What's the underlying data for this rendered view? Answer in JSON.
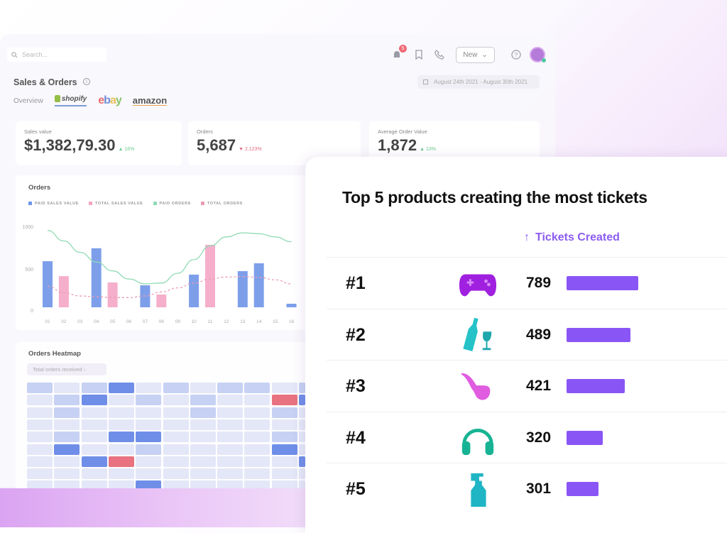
{
  "header": {
    "search_placeholder": "Search...",
    "notification_count": "5",
    "new_label": "New"
  },
  "page": {
    "title": "Sales & Orders",
    "date_range": "August 24th 2021 - August 30th 2021",
    "tabs": [
      {
        "label": "Overview"
      },
      {
        "label": "shopify"
      },
      {
        "label": "ebay"
      },
      {
        "label": "amazon"
      }
    ]
  },
  "stats": [
    {
      "label": "Sales value",
      "value": "$1,382,79.30",
      "change": "16%",
      "dir": "up"
    },
    {
      "label": "Orders",
      "value": "5,687",
      "change": "2.123%",
      "dir": "down"
    },
    {
      "label": "Average Order Value",
      "value": "1,872",
      "change": "13%",
      "dir": "up"
    }
  ],
  "chart_data": {
    "type": "bar",
    "title": "Orders",
    "categories": [
      "01",
      "02",
      "03",
      "04",
      "05",
      "06",
      "07",
      "08",
      "09",
      "10",
      "11",
      "12",
      "13",
      "14",
      "15",
      "16"
    ],
    "yticks": [
      "0",
      "500",
      "1000"
    ],
    "ylim": [
      0,
      1000
    ],
    "series": [
      {
        "name": "PAID SALES VALUE",
        "kind": "bar",
        "color": "#6f95e8",
        "values": [
          570,
          null,
          null,
          730,
          null,
          null,
          272,
          null,
          null,
          404,
          null,
          null,
          447,
          544,
          null,
          44
        ]
      },
      {
        "name": "TOTAL SALES VALUE",
        "kind": "bar",
        "color": "#f4a6c4",
        "values": [
          null,
          385,
          null,
          null,
          307,
          null,
          null,
          158,
          null,
          null,
          772,
          null,
          null,
          null,
          null,
          null
        ]
      },
      {
        "name": "PAID ORDERS",
        "kind": "line",
        "color": "#8fdbb5",
        "values": [
          950,
          820,
          680,
          560,
          450,
          350,
          290,
          300,
          420,
          590,
          760,
          870,
          920,
          910,
          870,
          810
        ]
      },
      {
        "name": "TOTAL ORDERS",
        "kind": "dashed",
        "color": "#ec9bb0",
        "values": [
          260,
          180,
          140,
          130,
          120,
          120,
          140,
          190,
          240,
          300,
          350,
          375,
          380,
          370,
          340,
          290
        ]
      }
    ]
  },
  "heatmap": {
    "title": "Orders Heatmap",
    "filter": "Total orders received",
    "colors": [
      "#e3e7f7",
      "#c6d1f4",
      "#6f8ee8",
      "#e8727f"
    ],
    "rows": [
      [
        1,
        0,
        1,
        2,
        0,
        1,
        0,
        1,
        1,
        0,
        1
      ],
      [
        0,
        1,
        2,
        0,
        1,
        0,
        1,
        0,
        0,
        3,
        2
      ],
      [
        0,
        1,
        0,
        0,
        0,
        0,
        1,
        0,
        0,
        1,
        0
      ],
      [
        0,
        0,
        0,
        0,
        0,
        0,
        0,
        0,
        0,
        0,
        0
      ],
      [
        0,
        1,
        0,
        2,
        2,
        0,
        0,
        0,
        0,
        1,
        0
      ],
      [
        0,
        2,
        0,
        0,
        1,
        0,
        0,
        0,
        0,
        2,
        0
      ],
      [
        0,
        0,
        2,
        3,
        0,
        0,
        0,
        0,
        0,
        0,
        2
      ],
      [
        0,
        0,
        0,
        0,
        0,
        0,
        0,
        0,
        0,
        0,
        0
      ],
      [
        0,
        0,
        0,
        0,
        2,
        0,
        0,
        0,
        0,
        0,
        0
      ]
    ]
  },
  "tickets": {
    "title": "Top 5 products creating the most tickets",
    "column": "Tickets Created",
    "rows": [
      {
        "rank": "#1",
        "icon": "gamepad-icon",
        "value": "789",
        "bar_percent": 100
      },
      {
        "rank": "#2",
        "icon": "wine-bottle-icon",
        "value": "489",
        "bar_percent": 89
      },
      {
        "rank": "#3",
        "icon": "pipe-icon",
        "value": "421",
        "bar_percent": 81
      },
      {
        "rank": "#4",
        "icon": "headphones-icon",
        "value": "320",
        "bar_percent": 50
      },
      {
        "rank": "#5",
        "icon": "spray-bottle-icon",
        "value": "301",
        "bar_percent": 45
      }
    ]
  }
}
